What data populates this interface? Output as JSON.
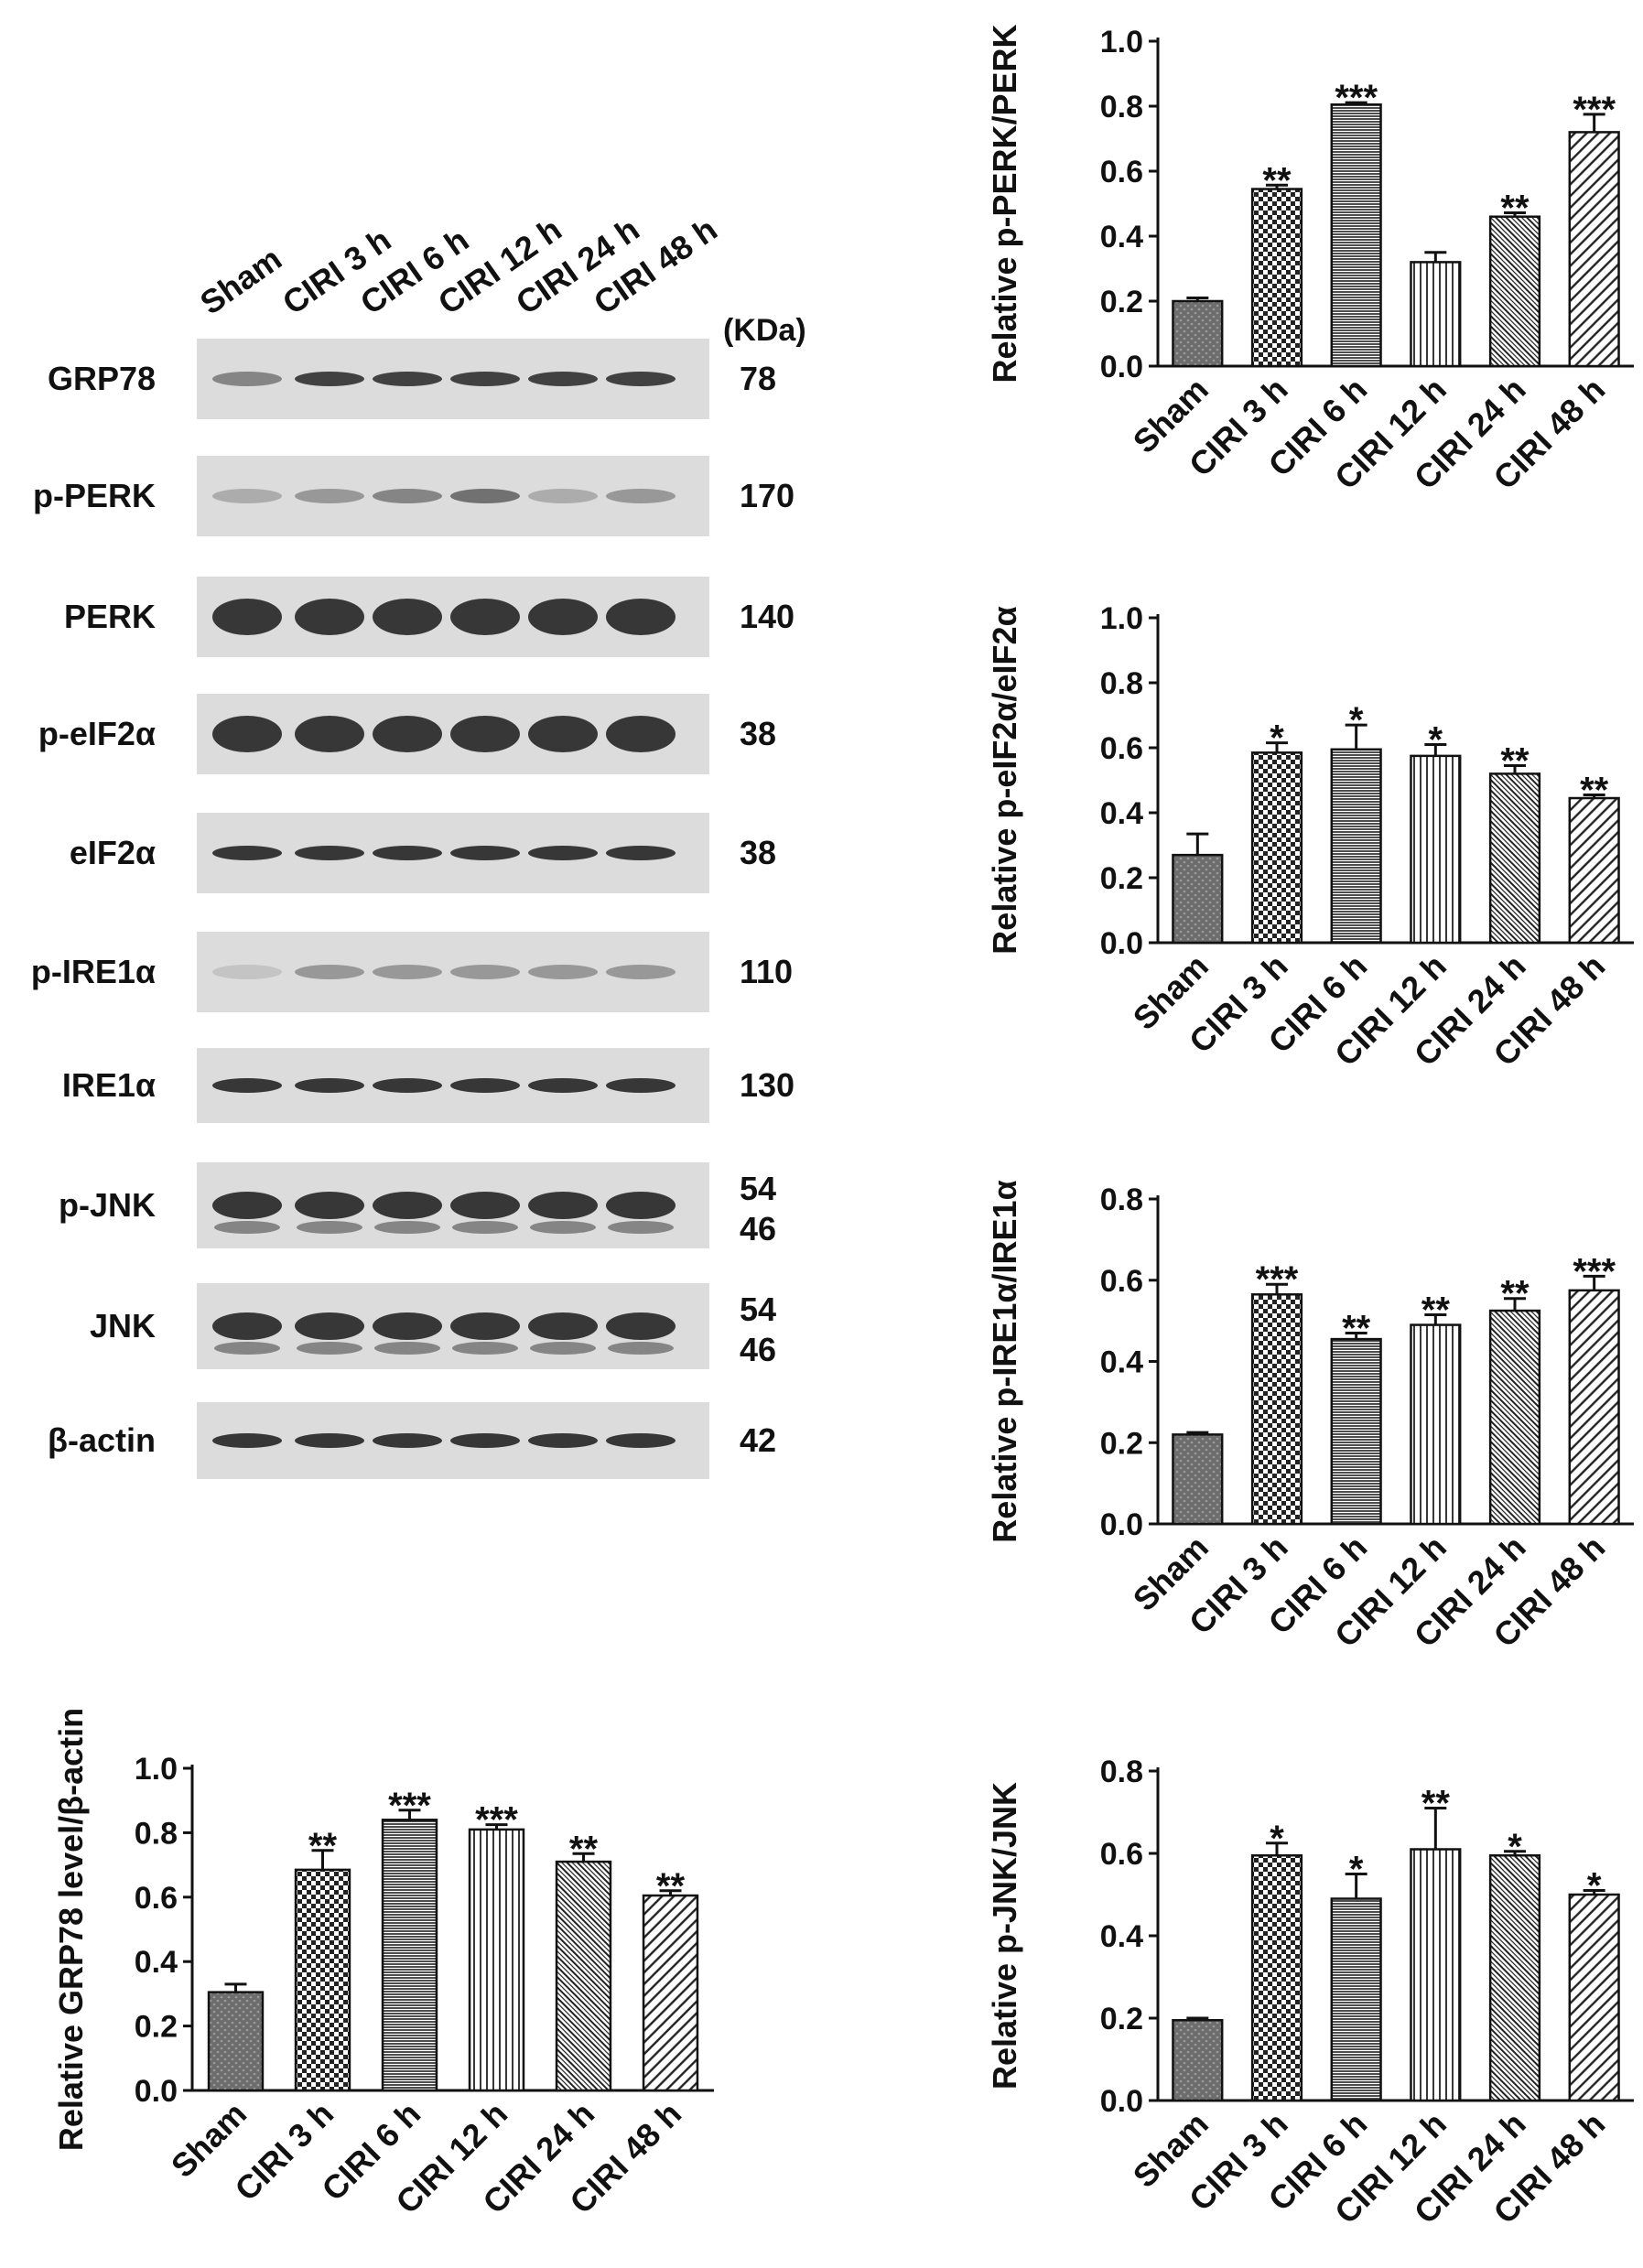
{
  "western_blot": {
    "lanes": [
      "Sham",
      "CIRI 3 h",
      "CIRI 6 h",
      "CIRI 12 h",
      "CIRI 24 h",
      "CIRI 48 h"
    ],
    "kda_header": "(KDa)",
    "rows": [
      {
        "label": "GRP78",
        "kda": [
          "78"
        ]
      },
      {
        "label": "p-PERK",
        "kda": [
          "170"
        ]
      },
      {
        "label": "PERK",
        "kda": [
          "140"
        ]
      },
      {
        "label": "p-eIF2α",
        "kda": [
          "38"
        ]
      },
      {
        "label": "eIF2α",
        "kda": [
          "38"
        ]
      },
      {
        "label": "p-IRE1α",
        "kda": [
          "110"
        ]
      },
      {
        "label": "IRE1α",
        "kda": [
          "130"
        ]
      },
      {
        "label": "p-JNK",
        "kda": [
          "54",
          "46"
        ]
      },
      {
        "label": "JNK",
        "kda": [
          "54",
          "46"
        ]
      },
      {
        "label": "β-actin",
        "kda": [
          "42"
        ]
      }
    ]
  },
  "chart_data": [
    {
      "type": "bar",
      "ylabel": "Relative p-PERK/PERK",
      "categories": [
        "Sham",
        "CIRI 3 h",
        "CIRI 6 h",
        "CIRI 12 h",
        "CIRI 24 h",
        "CIRI 48 h"
      ],
      "values": [
        0.2,
        0.545,
        0.805,
        0.32,
        0.46,
        0.72
      ],
      "errors": [
        0.01,
        0.012,
        0.006,
        0.03,
        0.012,
        0.055
      ],
      "significance": [
        "",
        "**",
        "***",
        "",
        "**",
        "***"
      ],
      "ylim": [
        0,
        1.0
      ],
      "yticks": [
        "0.0",
        "0.2",
        "0.4",
        "0.6",
        "0.8",
        "1.0"
      ]
    },
    {
      "type": "bar",
      "ylabel": "Relative p-eIF2α/eIF2α",
      "categories": [
        "Sham",
        "CIRI 3 h",
        "CIRI 6 h",
        "CIRI 12 h",
        "CIRI 24 h",
        "CIRI 48 h"
      ],
      "values": [
        0.27,
        0.585,
        0.595,
        0.575,
        0.52,
        0.445
      ],
      "errors": [
        0.065,
        0.03,
        0.075,
        0.035,
        0.025,
        0.01
      ],
      "significance": [
        "",
        "*",
        "*",
        "*",
        "**",
        "**"
      ],
      "ylim": [
        0,
        1.0
      ],
      "yticks": [
        "0.0",
        "0.2",
        "0.4",
        "0.6",
        "0.8",
        "1.0"
      ]
    },
    {
      "type": "bar",
      "ylabel": "Relative p-IRE1α/IRE1α",
      "categories": [
        "Sham",
        "CIRI 3 h",
        "CIRI 6 h",
        "CIRI 12 h",
        "CIRI 24 h",
        "CIRI 48 h"
      ],
      "values": [
        0.22,
        0.565,
        0.455,
        0.49,
        0.525,
        0.575
      ],
      "errors": [
        0.005,
        0.025,
        0.015,
        0.025,
        0.03,
        0.035
      ],
      "significance": [
        "",
        "***",
        "**",
        "**",
        "**",
        "***"
      ],
      "ylim": [
        0,
        0.8
      ],
      "yticks": [
        "0.0",
        "0.2",
        "0.4",
        "0.6",
        "0.8"
      ]
    },
    {
      "type": "bar",
      "ylabel": "Relative GRP78 level/β-actin",
      "categories": [
        "Sham",
        "CIRI 3 h",
        "CIRI 6 h",
        "CIRI 12 h",
        "CIRI 24 h",
        "CIRI 48 h"
      ],
      "values": [
        0.305,
        0.685,
        0.84,
        0.81,
        0.71,
        0.605
      ],
      "errors": [
        0.025,
        0.06,
        0.03,
        0.015,
        0.025,
        0.015
      ],
      "significance": [
        "",
        "**",
        "***",
        "***",
        "**",
        "**"
      ],
      "ylim": [
        0,
        1.0
      ],
      "yticks": [
        "0.0",
        "0.2",
        "0.4",
        "0.6",
        "0.8",
        "1.0"
      ]
    },
    {
      "type": "bar",
      "ylabel": "Relative p-JNK/JNK",
      "categories": [
        "Sham",
        "CIRI 3 h",
        "CIRI 6 h",
        "CIRI 12 h",
        "CIRI 24 h",
        "CIRI 48 h"
      ],
      "values": [
        0.195,
        0.595,
        0.49,
        0.61,
        0.595,
        0.5
      ],
      "errors": [
        0.005,
        0.03,
        0.06,
        0.1,
        0.01,
        0.01
      ],
      "significance": [
        "",
        "*",
        "*",
        "**",
        "*",
        "*"
      ],
      "ylim": [
        0,
        0.8
      ],
      "yticks": [
        "0.0",
        "0.2",
        "0.4",
        "0.6",
        "0.8"
      ]
    }
  ]
}
